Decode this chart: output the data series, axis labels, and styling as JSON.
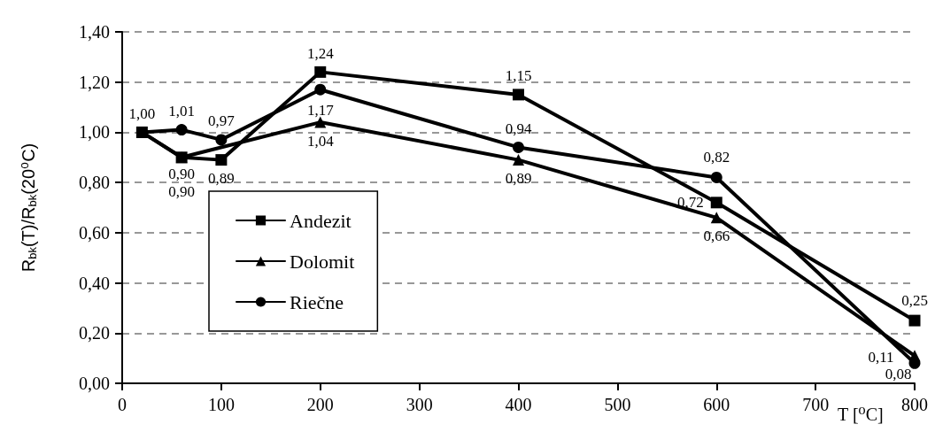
{
  "chart_data": {
    "type": "line",
    "ylabel": "R$_{bk}$(T)/R$_{bk}$(20⁰C)",
    "xlabel": "T [⁰C]",
    "xlim": [
      0,
      800
    ],
    "xticks": [
      0,
      100,
      200,
      300,
      400,
      500,
      600,
      700,
      800
    ],
    "ylim": [
      0,
      1.4
    ],
    "yticks": [
      {
        "value": 0,
        "label": "0,00"
      },
      {
        "value": 0.2,
        "label": "0,20"
      },
      {
        "value": 0.4,
        "label": "0,40"
      },
      {
        "value": 0.6,
        "label": "0,60"
      },
      {
        "value": 0.8,
        "label": "0,80"
      },
      {
        "value": 1,
        "label": "1,00"
      },
      {
        "value": 1.2,
        "label": "1,20"
      },
      {
        "value": 1.4,
        "label": "1,40"
      }
    ],
    "grid": "y",
    "legend": "bottom left",
    "line_style": "solid",
    "series": [
      {
        "name": "Andezit",
        "color": "#000000",
        "marker": "square",
        "x": [
          20,
          60,
          100,
          200,
          400,
          600,
          800
        ],
        "values": [
          1.0,
          0.9,
          0.89,
          1.24,
          1.15,
          0.72,
          0.25
        ],
        "value_labels": [
          "1,00",
          "0,90",
          "0,89",
          "1,24",
          "1,15",
          "0,72",
          "0,25"
        ]
      },
      {
        "name": "Dolomit",
        "color": "#000000",
        "marker": "triangle",
        "x": [
          20,
          60,
          200,
          400,
          600,
          800
        ],
        "values": [
          1.0,
          0.9,
          1.04,
          0.89,
          0.66,
          0.11
        ],
        "value_labels": [
          null,
          "0,90",
          "1,04",
          "0,89",
          "0,66",
          "0,11"
        ]
      },
      {
        "name": "Riečne",
        "color": "#000000",
        "marker": "circle",
        "x": [
          20,
          60,
          100,
          200,
          400,
          600,
          800
        ],
        "values": [
          1.0,
          1.01,
          0.97,
          1.17,
          0.94,
          0.82,
          0.08
        ],
        "value_labels": [
          null,
          "1,01",
          "0,97",
          "1,17",
          "0,94",
          "0,82",
          "0,08"
        ]
      }
    ]
  }
}
